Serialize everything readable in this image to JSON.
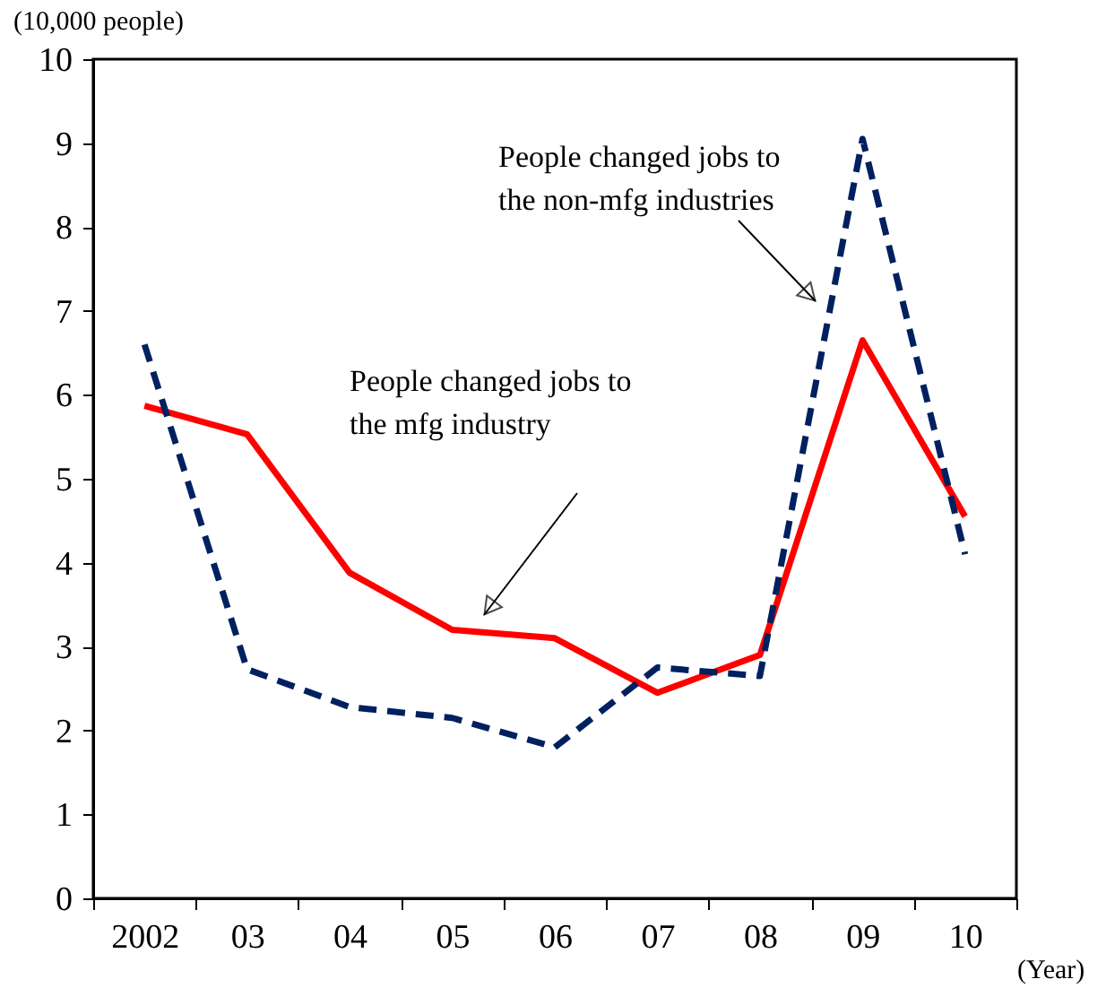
{
  "chart_data": {
    "type": "line",
    "xlabel": "(Year)",
    "ylabel": "(10,000 people)",
    "categories": [
      "2002",
      "03",
      "04",
      "05",
      "06",
      "07",
      "08",
      "09",
      "10"
    ],
    "series": [
      {
        "name": "People changed jobs to\nthe mfg industry",
        "color": "#ff0000",
        "line_style": "solid",
        "values": [
          5.87,
          5.53,
          3.88,
          3.2,
          3.1,
          2.45,
          2.9,
          6.65,
          4.55
        ]
      },
      {
        "name": "People changed jobs to\nthe non-mfg industries",
        "color": "#002060",
        "line_style": "dashed",
        "values": [
          6.6,
          2.73,
          2.28,
          2.15,
          1.8,
          2.75,
          2.65,
          9.05,
          4.1
        ]
      }
    ],
    "ylim": [
      0,
      10
    ],
    "yticks": [
      0,
      1,
      2,
      3,
      4,
      5,
      6,
      7,
      8,
      9,
      10
    ],
    "grid": false,
    "legend": false,
    "marker": "none"
  }
}
